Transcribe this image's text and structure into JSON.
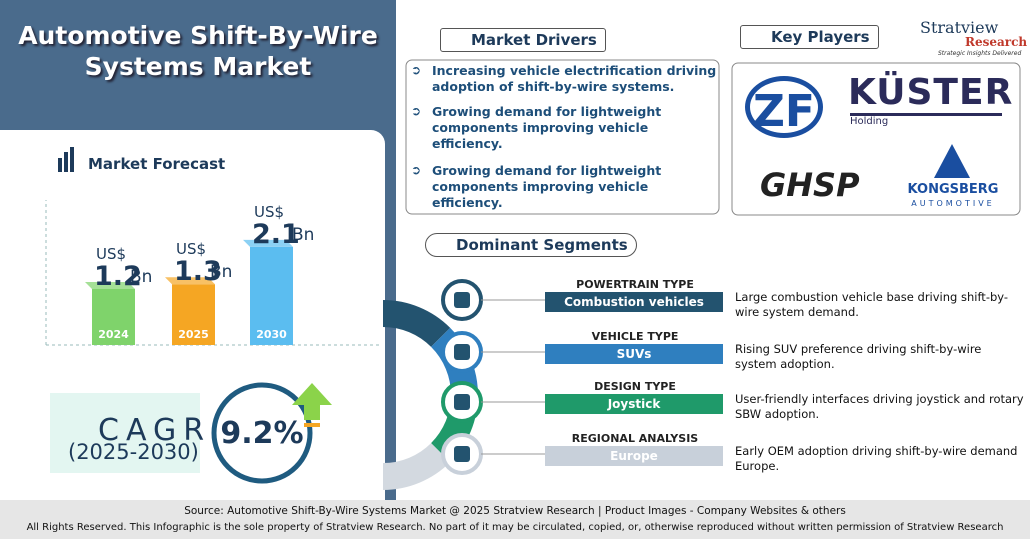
{
  "header": {
    "title": "Automotive Shift-By-Wire Systems Market"
  },
  "forecast": {
    "title": "Market Forecast",
    "currency": "US$",
    "unit": "Bn",
    "bars": [
      {
        "year": "2024",
        "value": 1.2,
        "color": "#7fd36b"
      },
      {
        "year": "2025",
        "value": 1.3,
        "color": "#f5a623"
      },
      {
        "year": "2030",
        "value": 2.1,
        "color": "#5bbdf0"
      }
    ]
  },
  "cagr": {
    "label": "CAGR",
    "period": "(2025-2030)",
    "value": "9.2%"
  },
  "drivers": {
    "title": "Market Drivers",
    "items": [
      "Increasing vehicle electrification driving adoption of shift-by-wire systems.",
      "Growing demand for lightweight components improving vehicle efficiency.",
      "Growing demand for lightweight components improving vehicle efficiency."
    ]
  },
  "players": {
    "title": "Key Players",
    "logos": [
      {
        "name": "ZF"
      },
      {
        "name": "KÜSTER",
        "sub": "Holding"
      },
      {
        "name": "GHSP"
      },
      {
        "name": "KONGSBERG",
        "sub": "AUTOMOTIVE"
      }
    ]
  },
  "brand": {
    "name": "Stratview",
    "sub": "Research",
    "tagline": "Strategic Insights Delivered"
  },
  "segments": {
    "title": "Dominant Segments",
    "items": [
      {
        "type": "POWERTRAIN TYPE",
        "name": "Combustion vehicles",
        "desc": "Large combustion vehicle base driving shift-by-wire system demand."
      },
      {
        "type": "VEHICLE TYPE",
        "name": "SUVs",
        "desc": "Rising SUV preference driving shift-by-wire system adoption."
      },
      {
        "type": "DESIGN TYPE",
        "name": "Joystick",
        "desc": "User-friendly interfaces driving joystick and rotary SBW adoption."
      },
      {
        "type": "REGIONAL ANALYSIS",
        "name": "Europe",
        "desc": "Early OEM adoption driving shift-by-wire demand Europe."
      }
    ]
  },
  "footer": {
    "source": "Source:  Automotive Shift-By-Wire Systems Market  @ 2025 Stratview Research | Product Images  - Company Websites & others",
    "rights": "All Rights Reserved. This Infographic is the sole property of Stratview Research. No part of it may be circulated, copied, or, otherwise reproduced without written permission of Stratview Research"
  }
}
